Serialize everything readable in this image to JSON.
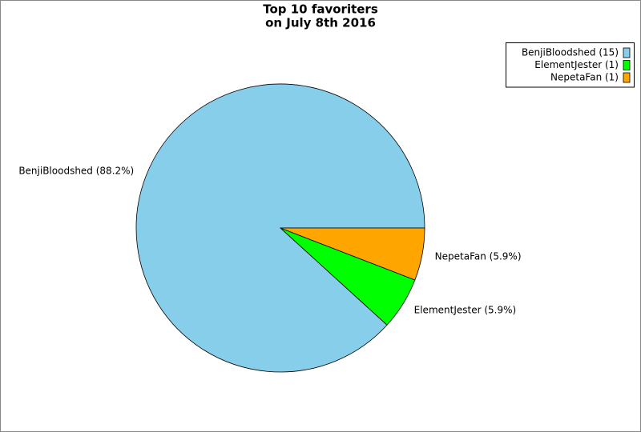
{
  "chart_data": {
    "type": "pie",
    "title": "Top 10 favoriters",
    "subtitle": "on July 8th 2016",
    "values": [
      15,
      1,
      1
    ],
    "value_labels": [
      "BenjiBloodshed (88.2%)",
      "ElementJester (5.9%)",
      "NepetaFan (5.9%)"
    ],
    "legend_labels": [
      "BenjiBloodshed (15)",
      "ElementJester (1)",
      "NepetaFan (1)"
    ],
    "colors": [
      "#87ceeb",
      "#00ff00",
      "#ffa500"
    ],
    "legend": "upper right"
  }
}
